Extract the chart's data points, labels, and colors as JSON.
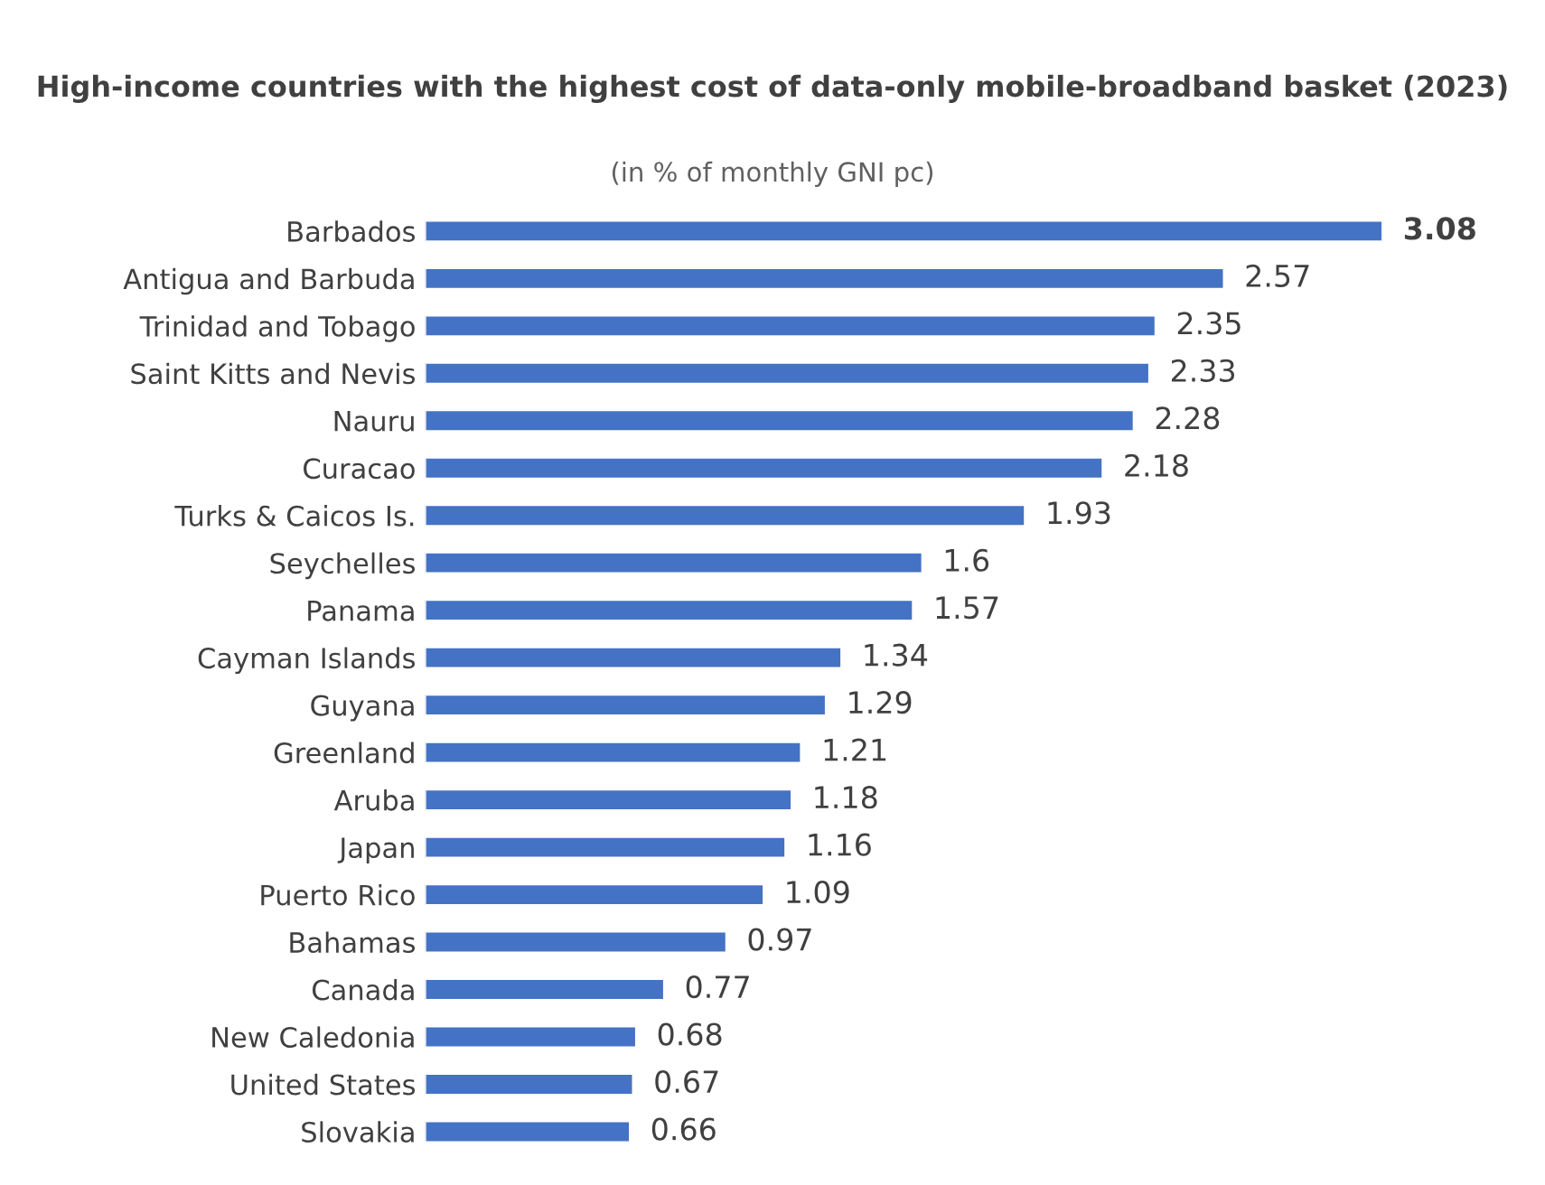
{
  "chart_data": {
    "type": "bar",
    "orientation": "horizontal",
    "title": "High-income countries with the highest cost of data-only mobile-broadband basket (2023)",
    "subtitle": "(in % of monthly GNI pc)",
    "categories": [
      "Barbados",
      "Antigua and Barbuda",
      "Trinidad and Tobago",
      "Saint Kitts and Nevis",
      "Nauru",
      "Curacao",
      "Turks & Caicos Is.",
      "Seychelles",
      "Panama",
      "Cayman Islands",
      "Guyana",
      "Greenland",
      "Aruba",
      "Japan",
      "Puerto Rico",
      "Bahamas",
      "Canada",
      "New Caledonia",
      "United States",
      "Slovakia"
    ],
    "values": [
      3.08,
      2.57,
      2.35,
      2.33,
      2.28,
      2.18,
      1.93,
      1.6,
      1.57,
      1.34,
      1.29,
      1.21,
      1.18,
      1.16,
      1.09,
      0.97,
      0.77,
      0.68,
      0.67,
      0.66
    ],
    "color": "#4472c4",
    "data_labels": true,
    "grid": false,
    "legend": false
  }
}
